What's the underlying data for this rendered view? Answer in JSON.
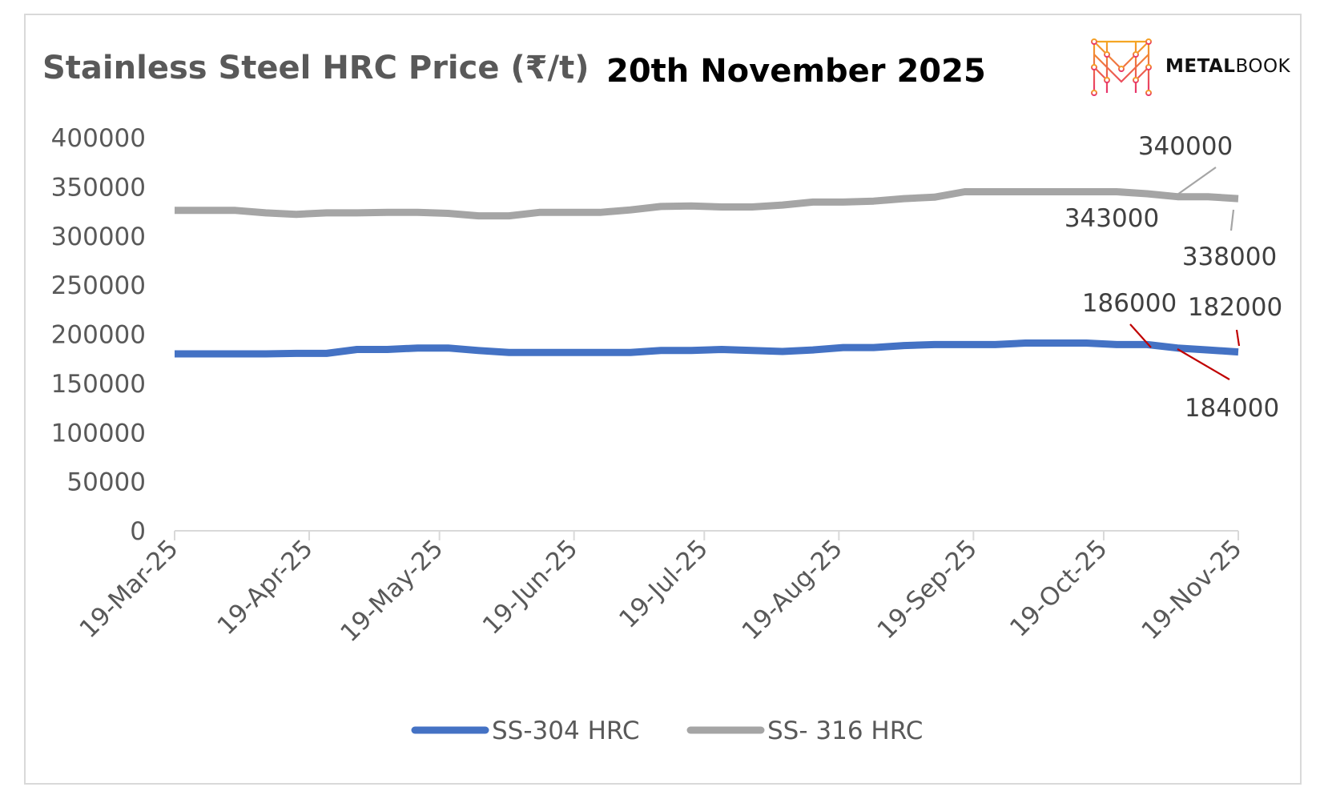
{
  "header": {
    "title": "Stainless Steel HRC Price (₹/t)",
    "date": "20th November 2025",
    "brand_bold": "METAL",
    "brand_light": "BOOK"
  },
  "colors": {
    "ss304": "#4472c4",
    "ss316": "#a5a5a5",
    "callout_304": "#c00000",
    "callout_316": "#a5a5a5",
    "axis": "#d9d9d9"
  },
  "chart_data": {
    "type": "line",
    "title": "Stainless Steel HRC Price (₹/t)",
    "xlabel": "",
    "ylabel": "",
    "ylim": [
      0,
      400000
    ],
    "yticks": [
      0,
      50000,
      100000,
      150000,
      200000,
      250000,
      300000,
      350000,
      400000
    ],
    "ytick_labels": [
      "0",
      "50000",
      "100000",
      "150000",
      "200000",
      "250000",
      "300000",
      "350000",
      "400000"
    ],
    "xlim": [
      "2025-03-19",
      "2025-11-19"
    ],
    "xticks": [
      "2025-03-19",
      "2025-04-19",
      "2025-05-19",
      "2025-06-19",
      "2025-07-19",
      "2025-08-19",
      "2025-09-19",
      "2025-10-19",
      "2025-11-19"
    ],
    "xtick_labels": [
      "19-Mar-25",
      "19-Apr-25",
      "19-May-25",
      "19-Jun-25",
      "19-Jul-25",
      "19-Aug-25",
      "19-Sep-25",
      "19-Oct-25",
      "19-Nov-25"
    ],
    "grid": false,
    "legend": "bottom",
    "series": [
      {
        "name": "SS-304 HRC",
        "color": "#4472c4",
        "points": [
          [
            "2025-03-19",
            180000
          ],
          [
            "2025-03-26",
            180000
          ],
          [
            "2025-04-02",
            180000
          ],
          [
            "2025-04-09",
            180000
          ],
          [
            "2025-04-16",
            180500
          ],
          [
            "2025-04-23",
            180500
          ],
          [
            "2025-04-30",
            184500
          ],
          [
            "2025-05-07",
            184500
          ],
          [
            "2025-05-14",
            186000
          ],
          [
            "2025-05-21",
            186000
          ],
          [
            "2025-05-28",
            183500
          ],
          [
            "2025-06-04",
            181500
          ],
          [
            "2025-06-11",
            181500
          ],
          [
            "2025-06-18",
            181500
          ],
          [
            "2025-06-25",
            181500
          ],
          [
            "2025-07-02",
            181500
          ],
          [
            "2025-07-09",
            183500
          ],
          [
            "2025-07-16",
            183500
          ],
          [
            "2025-07-23",
            184500
          ],
          [
            "2025-07-30",
            183500
          ],
          [
            "2025-08-06",
            182500
          ],
          [
            "2025-08-13",
            184000
          ],
          [
            "2025-08-20",
            186500
          ],
          [
            "2025-08-27",
            186500
          ],
          [
            "2025-09-03",
            188500
          ],
          [
            "2025-09-10",
            189500
          ],
          [
            "2025-09-17",
            189500
          ],
          [
            "2025-09-24",
            189500
          ],
          [
            "2025-10-01",
            191000
          ],
          [
            "2025-10-08",
            191000
          ],
          [
            "2025-10-15",
            191000
          ],
          [
            "2025-10-22",
            189500
          ],
          [
            "2025-10-29",
            189500
          ],
          [
            "2025-11-05",
            186000
          ],
          [
            "2025-11-12",
            184000
          ],
          [
            "2025-11-19",
            182000
          ]
        ]
      },
      {
        "name": "SS- 316 HRC",
        "color": "#a5a5a5",
        "points": [
          [
            "2025-03-19",
            326000
          ],
          [
            "2025-03-26",
            326000
          ],
          [
            "2025-04-02",
            326000
          ],
          [
            "2025-04-09",
            323500
          ],
          [
            "2025-04-16",
            322000
          ],
          [
            "2025-04-23",
            323500
          ],
          [
            "2025-04-30",
            323500
          ],
          [
            "2025-05-07",
            324000
          ],
          [
            "2025-05-14",
            324000
          ],
          [
            "2025-05-21",
            323000
          ],
          [
            "2025-05-28",
            320500
          ],
          [
            "2025-06-04",
            320500
          ],
          [
            "2025-06-11",
            324000
          ],
          [
            "2025-06-18",
            324000
          ],
          [
            "2025-06-25",
            324000
          ],
          [
            "2025-07-02",
            326500
          ],
          [
            "2025-07-09",
            330000
          ],
          [
            "2025-07-16",
            330500
          ],
          [
            "2025-07-23",
            329500
          ],
          [
            "2025-07-30",
            329500
          ],
          [
            "2025-08-06",
            331500
          ],
          [
            "2025-08-13",
            334500
          ],
          [
            "2025-08-20",
            334500
          ],
          [
            "2025-08-27",
            335500
          ],
          [
            "2025-09-03",
            338000
          ],
          [
            "2025-09-10",
            339500
          ],
          [
            "2025-09-17",
            345000
          ],
          [
            "2025-09-24",
            345000
          ],
          [
            "2025-10-01",
            345000
          ],
          [
            "2025-10-08",
            345000
          ],
          [
            "2025-10-15",
            345000
          ],
          [
            "2025-10-22",
            345000
          ],
          [
            "2025-10-29",
            343000
          ],
          [
            "2025-11-05",
            340000
          ],
          [
            "2025-11-12",
            340000
          ],
          [
            "2025-11-19",
            338000
          ]
        ]
      }
    ],
    "annotations": [
      {
        "text": "340000",
        "series": "SS- 316 HRC",
        "x": "2025-11-05",
        "y": 340000
      },
      {
        "text": "343000",
        "series": "SS- 316 HRC",
        "x": "2025-10-29",
        "y": 343000
      },
      {
        "text": "338000",
        "series": "SS- 316 HRC",
        "x": "2025-11-19",
        "y": 338000
      },
      {
        "text": "186000",
        "series": "SS-304 HRC",
        "x": "2025-11-05",
        "y": 186000
      },
      {
        "text": "182000",
        "series": "SS-304 HRC",
        "x": "2025-11-19",
        "y": 182000
      },
      {
        "text": "184000",
        "series": "SS-304 HRC",
        "x": "2025-11-12",
        "y": 184000
      }
    ]
  }
}
